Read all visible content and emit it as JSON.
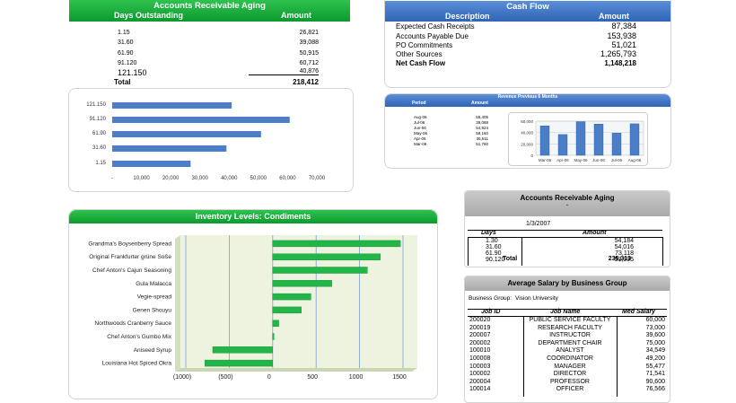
{
  "ar_aging_top": {
    "title": "Accounts Receivable Aging",
    "col_days": "Days Outstanding",
    "col_amount": "Amount",
    "rows": [
      {
        "days": "1.15",
        "amount": "26,821"
      },
      {
        "days": "31.60",
        "amount": "39,088"
      },
      {
        "days": "61.90",
        "amount": "50,915"
      },
      {
        "days": "91.120",
        "amount": "60,712"
      },
      {
        "days": "121.150",
        "amount": "40,876"
      }
    ],
    "total_label": "Total",
    "total_value": "218,412"
  },
  "cash_flow": {
    "title": "Cash Flow",
    "col_desc": "Description",
    "col_amount": "Amount",
    "rows": [
      {
        "desc": "Expected Cash Receipts",
        "amount": "87,384"
      },
      {
        "desc": "Accounts Payable Due",
        "amount": "153,938"
      },
      {
        "desc": "PO Commitments",
        "amount": "51,021"
      },
      {
        "desc": "Other Sources",
        "amount": "1,265,793"
      }
    ],
    "net_label": "Net Cash Flow",
    "net_value": "1,148,218"
  },
  "revenue": {
    "title": "Revenue Previous 6 Months",
    "col_period": "Period",
    "col_amount": "Amount",
    "rows": [
      {
        "period": "Aug-06",
        "amount": "55,405"
      },
      {
        "period": "Jul-06",
        "amount": "39,088"
      },
      {
        "period": "Jun-06",
        "amount": "54,924"
      },
      {
        "period": "May-06",
        "amount": "59,160"
      },
      {
        "period": "Apr-06",
        "amount": "36,511"
      },
      {
        "period": "Mar-06",
        "amount": "51,760"
      }
    ]
  },
  "ar_aging_side": {
    "title": "Accounts Receivable Aging",
    "dot": ".",
    "date": "1/3/2007",
    "col_days": "Days",
    "col_amount": "Amount",
    "rows": [
      {
        "days": "1.30",
        "amount": "54,184"
      },
      {
        "days": "31.60",
        "amount": "54,016"
      },
      {
        "days": "61.90",
        "amount": "73,118"
      },
      {
        "days": "90.120",
        "amount": "53,995"
      }
    ],
    "total_label": "Total",
    "total_value": "235,313"
  },
  "salary": {
    "title": "Average Salary by Business Group",
    "group_label": "Business Group:",
    "group_value": "Vision University",
    "col_job_id": "Job ID",
    "col_job_name": "Job Name",
    "col_med_salary": "Med Salary",
    "rows": [
      {
        "id": "200020",
        "name": "PUBLIC SERVICE FACULTY",
        "salary": "60,000"
      },
      {
        "id": "200019",
        "name": "RESEARCH FACULTY",
        "salary": "73,000"
      },
      {
        "id": "200007",
        "name": "INSTRUCTOR",
        "salary": "39,600"
      },
      {
        "id": "200002",
        "name": "DEPARTMENT CHAIR",
        "salary": "75,000"
      },
      {
        "id": "100010",
        "name": "ANALYST",
        "salary": "34,549"
      },
      {
        "id": "100008",
        "name": "COORDINATOR",
        "salary": "49,200"
      },
      {
        "id": "100003",
        "name": "MANAGER",
        "salary": "55,477"
      },
      {
        "id": "100002",
        "name": "DIRECTOR",
        "salary": "71,541"
      },
      {
        "id": "200004",
        "name": "PROFESSOR",
        "salary": "90,600"
      },
      {
        "id": "100014",
        "name": "OFFICER",
        "salary": "76,566"
      }
    ]
  },
  "inventory": {
    "title": "Inventory Levels: Condiments"
  },
  "colors": {
    "green": "#17a83a",
    "blue_bar": "#4a7ec6",
    "header_blue": "#3f74c4",
    "inv_bar": "#22b548",
    "plot_bg": "#eef3e0"
  },
  "chart_data": [
    {
      "type": "bar",
      "orientation": "horizontal",
      "categories": [
        "121.150",
        "91.120",
        "61.90",
        "31.60",
        "1.15"
      ],
      "values": [
        40876,
        60712,
        50915,
        39088,
        26821
      ],
      "xlim": [
        0,
        70000
      ],
      "x_ticks": [
        "-",
        "10,000",
        "20,000",
        "30,000",
        "40,000",
        "50,000",
        "60,000",
        "70,000"
      ]
    },
    {
      "type": "bar",
      "categories": [
        "Mar-06",
        "Apr-06",
        "May-06",
        "Jun-06",
        "Jul-06",
        "Aug-06"
      ],
      "values": [
        51760,
        36511,
        59160,
        54924,
        39088,
        55405
      ],
      "ylim": [
        0,
        60000
      ],
      "y_ticks": [
        "60,000",
        "40,000",
        "20,000",
        "0"
      ]
    },
    {
      "type": "bar",
      "orientation": "horizontal",
      "title": "Inventory Levels: Condiments",
      "categories": [
        "Grandma's Boysenberry Spread",
        "Original Frankfurter grüne Soße",
        "Chef Anton's Cajun Seasoning",
        "Gula Malacca",
        "Vegie-spread",
        "Genen Shouyu",
        "Northwoods Cranberry Sauce",
        "Chef Anton's Gumbo Mix",
        "Aniseed Syrup",
        "Louisiana Hot Spiced Okra"
      ],
      "values": [
        1470,
        1240,
        1090,
        680,
        440,
        330,
        70,
        0,
        -690,
        -780
      ],
      "xlim": [
        -1000,
        1500
      ],
      "x_ticks": [
        "(1000)",
        "(500)",
        "0",
        "500",
        "1000",
        "1500"
      ]
    }
  ]
}
